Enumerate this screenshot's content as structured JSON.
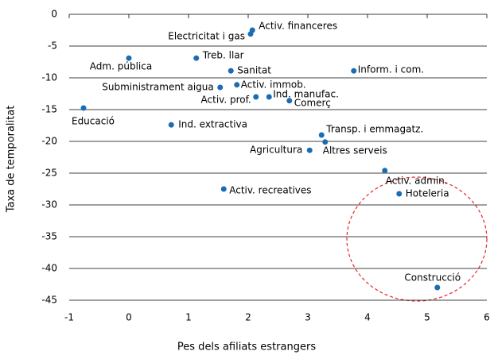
{
  "chart_data": {
    "type": "scatter",
    "xlabel": "Pes dels afiliats estrangers",
    "ylabel": "Taxa de temporalitat",
    "labels": [
      "Activ. financeres",
      "Electricitat i gas",
      "Adm. pública",
      "Treb. llar",
      "Sanitat",
      "Inform. i com.",
      "Subministrament aigua",
      "Activ. immob.",
      "Activ. prof.",
      "Ind. manufac.",
      "Comerç",
      "Educació",
      "Ind. extractiva",
      "Transp. i emmagatz.",
      "Altres serveis",
      "Agricultura",
      "Activ. admin.",
      "Hoteleria",
      "Activ. recreatives",
      "Construcció"
    ],
    "x": [
      2.07,
      2.04,
      0.0,
      1.13,
      1.71,
      3.77,
      1.53,
      1.81,
      2.13,
      2.35,
      2.69,
      -0.76,
      0.71,
      3.23,
      3.29,
      3.03,
      4.29,
      4.53,
      1.59,
      5.17
    ],
    "values": [
      -2.5,
      -3.1,
      -6.9,
      -6.9,
      -8.9,
      -8.9,
      -11.5,
      -11.1,
      -13.0,
      -13.0,
      -13.6,
      -14.75,
      -17.4,
      -19.0,
      -20.1,
      -21.4,
      -24.6,
      -28.25,
      -27.5,
      -43.0
    ],
    "color": "#1b6db3",
    "xlim": [
      -1,
      6
    ],
    "xticks": [
      -1,
      0,
      1,
      2,
      3,
      4,
      5,
      6
    ],
    "ylim": [
      -45,
      0
    ],
    "yticks": [
      0,
      -5,
      -10,
      -15,
      -20,
      -25,
      -30,
      -35,
      -40,
      -45
    ],
    "grid": true
  }
}
